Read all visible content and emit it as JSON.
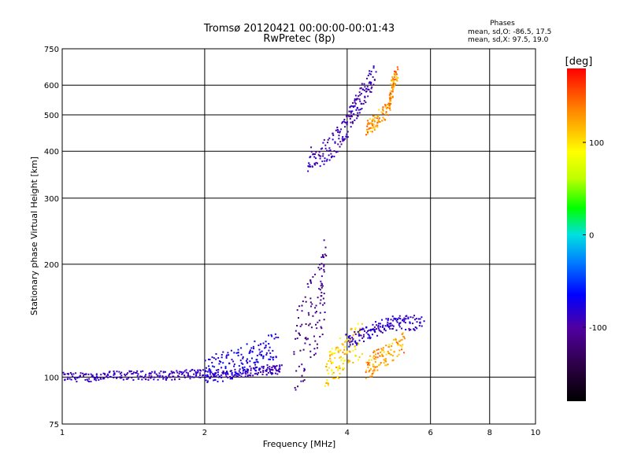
{
  "chart_data": {
    "type": "scatter",
    "title": "Tromsø 20120421 00:00:00-00:01:43",
    "subtitle": "RwPretec (8p)",
    "xlabel": "Frequency [MHz]",
    "ylabel": "Stationary phase Virtual Height [km]",
    "x_scale": "log",
    "y_scale": "log",
    "xlim": [
      1,
      10
    ],
    "ylim": [
      75,
      750
    ],
    "x_ticks": [
      1,
      2,
      4,
      6,
      8,
      10
    ],
    "x_tick_labels": [
      "1",
      "2",
      "4",
      "6",
      "8",
      "10"
    ],
    "y_ticks": [
      75,
      100,
      200,
      300,
      400,
      500,
      600,
      750
    ],
    "y_tick_labels": [
      "75",
      "100",
      "200",
      "300",
      "400",
      "500",
      "600",
      "750"
    ],
    "grid": true,
    "phases_header": "Phases",
    "stats": [
      "mean, sd,O: -86.5, 17.5",
      "mean, sd,X:  97.5, 19.0"
    ],
    "colorbar": {
      "label": "[deg]",
      "range": [
        -180,
        180
      ],
      "ticks": [
        100,
        0,
        -100
      ],
      "tick_labels": [
        "100",
        "0",
        "-100"
      ]
    },
    "series": [
      {
        "trace": [
          [
            1.0,
            100
          ],
          [
            1.15,
            100
          ],
          [
            1.3,
            101
          ],
          [
            1.5,
            101
          ],
          [
            1.7,
            101
          ],
          [
            1.9,
            102
          ],
          [
            2.1,
            102
          ],
          [
            2.4,
            103
          ],
          [
            2.7,
            104
          ],
          [
            2.9,
            105
          ]
        ],
        "spread": 0.012,
        "phase": [
          -100,
          -80
        ]
      },
      {
        "trace": [
          [
            2.0,
            105
          ],
          [
            2.2,
            107
          ],
          [
            2.4,
            110
          ],
          [
            2.6,
            115
          ],
          [
            2.85,
            122
          ]
        ],
        "spread": 0.04,
        "phase": [
          -90,
          -60
        ]
      },
      {
        "trace": [
          [
            3.1,
            110
          ],
          [
            3.3,
            135
          ],
          [
            3.5,
            160
          ],
          [
            3.6,
            180
          ]
        ],
        "spread": 0.12,
        "phase": [
          -130,
          -90
        ]
      },
      {
        "trace": [
          [
            3.6,
            105
          ],
          [
            3.8,
            110
          ],
          [
            4.0,
            120
          ],
          [
            4.3,
            125
          ]
        ],
        "spread": 0.05,
        "phase": [
          80,
          130
        ]
      },
      {
        "trace": [
          [
            4.4,
            105
          ],
          [
            4.6,
            110
          ],
          [
            4.9,
            115
          ],
          [
            5.3,
            125
          ]
        ],
        "spread": 0.03,
        "phase": [
          100,
          150
        ]
      },
      {
        "trace": [
          [
            4.0,
            125
          ],
          [
            4.4,
            130
          ],
          [
            4.8,
            138
          ],
          [
            5.2,
            140
          ],
          [
            5.8,
            139
          ]
        ],
        "spread": 0.02,
        "phase": [
          -100,
          -70
        ]
      },
      {
        "trace": [
          [
            3.3,
            380
          ],
          [
            3.6,
            400
          ],
          [
            3.9,
            440
          ],
          [
            4.1,
            500
          ],
          [
            4.3,
            560
          ],
          [
            4.6,
            640
          ]
        ],
        "spread": 0.035,
        "phase": [
          -110,
          -80
        ]
      },
      {
        "trace": [
          [
            4.4,
            460
          ],
          [
            4.6,
            480
          ],
          [
            4.9,
            520
          ],
          [
            5.0,
            600
          ],
          [
            5.1,
            650
          ]
        ],
        "spread": 0.02,
        "phase": [
          100,
          160
        ]
      }
    ]
  }
}
